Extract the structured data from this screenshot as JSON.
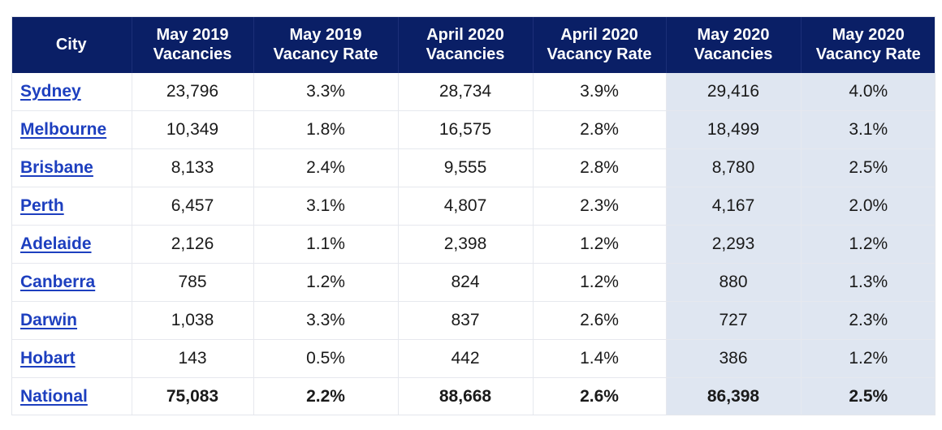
{
  "table": {
    "headers": [
      {
        "line1": "City",
        "line2": ""
      },
      {
        "line1": "May 2019",
        "line2": "Vacancies"
      },
      {
        "line1": "May 2019",
        "line2": "Vacancy Rate"
      },
      {
        "line1": "April 2020",
        "line2": "Vacancies"
      },
      {
        "line1": "April 2020",
        "line2": "Vacancy Rate"
      },
      {
        "line1": "May 2020",
        "line2": "Vacancies"
      },
      {
        "line1": "May 2020",
        "line2": "Vacancy Rate"
      }
    ],
    "rows": [
      {
        "city": "Sydney",
        "cells": [
          "23,796",
          "3.3%",
          "28,734",
          "3.9%",
          "29,416",
          "4.0%"
        ]
      },
      {
        "city": "Melbourne",
        "cells": [
          "10,349",
          "1.8%",
          "16,575",
          "2.8%",
          "18,499",
          "3.1%"
        ]
      },
      {
        "city": "Brisbane",
        "cells": [
          "8,133",
          "2.4%",
          "9,555",
          "2.8%",
          "8,780",
          "2.5%"
        ]
      },
      {
        "city": "Perth",
        "cells": [
          "6,457",
          "3.1%",
          "4,807",
          "2.3%",
          "4,167",
          "2.0%"
        ]
      },
      {
        "city": "Adelaide",
        "cells": [
          "2,126",
          "1.1%",
          "2,398",
          "1.2%",
          "2,293",
          "1.2%"
        ]
      },
      {
        "city": "Canberra",
        "cells": [
          "785",
          "1.2%",
          "824",
          "1.2%",
          "880",
          "1.3%"
        ]
      },
      {
        "city": "Darwin",
        "cells": [
          "1,038",
          "3.3%",
          "837",
          "2.6%",
          "727",
          "2.3%"
        ]
      },
      {
        "city": "Hobart",
        "cells": [
          "143",
          "0.5%",
          "442",
          "1.4%",
          "386",
          "1.2%"
        ]
      },
      {
        "city": "National",
        "cells": [
          "75,083",
          "2.2%",
          "88,668",
          "2.6%",
          "86,398",
          "2.5%"
        ]
      }
    ]
  },
  "colors": {
    "header_bg": "#0a1f66",
    "header_text": "#ffffff",
    "link": "#1d3fbf",
    "highlight_column_bg": "#dfe6f1"
  }
}
